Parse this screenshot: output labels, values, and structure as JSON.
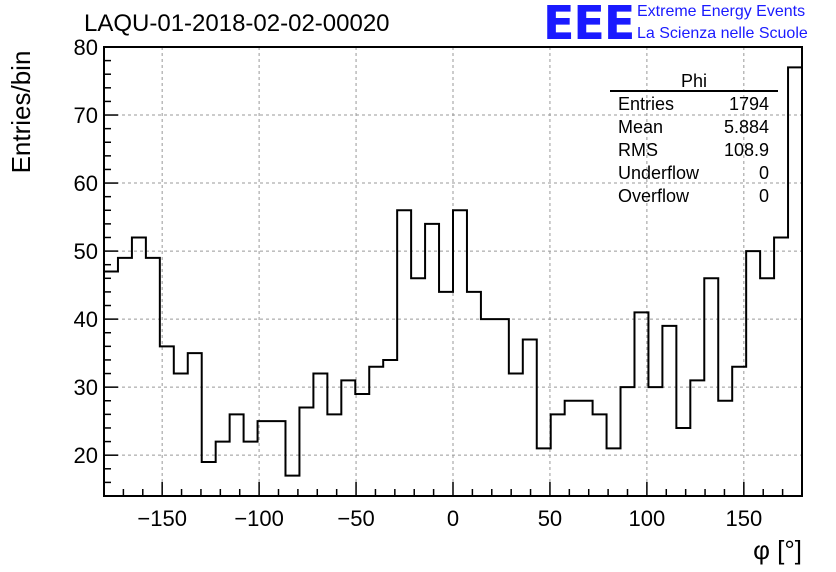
{
  "header": {
    "title": "LAQU-01-2018-02-02-00020",
    "brand_logo": "EEE",
    "brand_line_1": "Extreme Energy Events",
    "brand_line_2": "La Scienza nelle Scuole"
  },
  "colors": {
    "brand": "#1a1aff",
    "line": "#000000",
    "grid": "#999999"
  },
  "stats_box": {
    "title": "Phi",
    "rows": [
      {
        "label": "Entries",
        "value": "1794"
      },
      {
        "label": "Mean",
        "value": "5.884"
      },
      {
        "label": "RMS",
        "value": "108.9"
      },
      {
        "label": "Underflow",
        "value": "0"
      },
      {
        "label": "Overflow",
        "value": "0"
      }
    ]
  },
  "chart_data": {
    "type": "histogram-step",
    "xlabel": "φ [°]",
    "ylabel": "Entries/bin",
    "xlim": [
      -180,
      180
    ],
    "ylim": [
      14,
      80
    ],
    "grid": true,
    "bin_width": 7.2,
    "x_ticks": [
      -150,
      -100,
      -50,
      0,
      50,
      100,
      150
    ],
    "x_tick_labels": [
      "−150",
      "−100",
      "−50",
      "0",
      "50",
      "100",
      "150"
    ],
    "y_ticks": [
      20,
      30,
      40,
      50,
      60,
      70,
      80
    ],
    "y_tick_labels": [
      "20",
      "30",
      "40",
      "50",
      "60",
      "70",
      "80"
    ],
    "bin_edges_start": -180,
    "values": [
      47,
      49,
      52,
      49,
      36,
      32,
      35,
      19,
      22,
      26,
      22,
      25,
      25,
      17,
      27,
      32,
      26,
      31,
      29,
      33,
      34,
      56,
      46,
      54,
      44,
      56,
      44,
      40,
      40,
      32,
      37,
      21,
      26,
      28,
      28,
      26,
      21,
      30,
      41,
      30,
      39,
      24,
      31,
      46,
      28,
      33,
      50,
      46,
      52,
      77
    ]
  }
}
